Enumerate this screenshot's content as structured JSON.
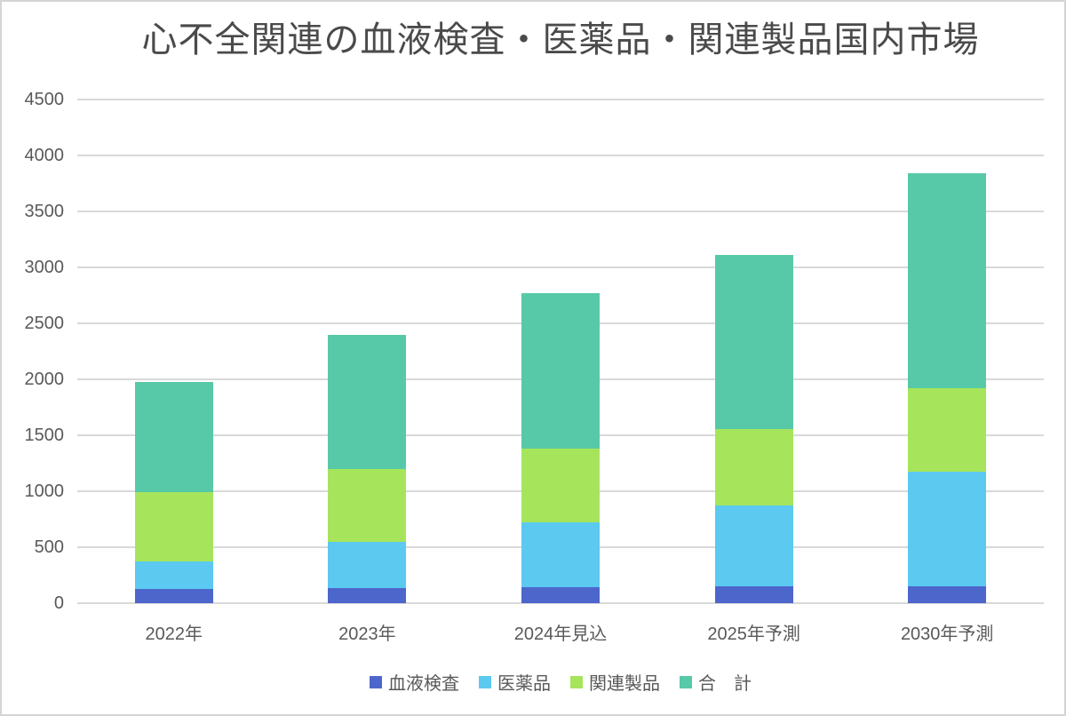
{
  "frame": {
    "background": "#ffffff",
    "border_color": "#d5d5d5",
    "gridline_color": "#d9d9d9",
    "axis_text_color": "#595959",
    "title_color": "#4a4a4a"
  },
  "chart_data": {
    "type": "bar",
    "stacked": true,
    "title": "心不全関連の血液検査・医薬品・関連製品国内市場",
    "categories": [
      "2022年",
      "2023年",
      "2024年見込",
      "2025年予測",
      "2030年予測"
    ],
    "series": [
      {
        "name": "血液検査",
        "color": "#4d66cb",
        "values": [
          130,
          135,
          140,
          150,
          155
        ]
      },
      {
        "name": "医薬品",
        "color": "#5bc9f0",
        "values": [
          240,
          410,
          580,
          720,
          1020
        ]
      },
      {
        "name": "関連製品",
        "color": "#a6e55b",
        "values": [
          620,
          655,
          665,
          685,
          745
        ]
      },
      {
        "name": "合　計",
        "color": "#57c9a8",
        "values": [
          990,
          1200,
          1385,
          1555,
          1920
        ]
      }
    ],
    "stack_totals": [
      1980,
      2400,
      2770,
      3110,
      3840
    ],
    "xlabel": "",
    "ylabel": "",
    "ylim": [
      0,
      4500
    ],
    "ytick_step": 500,
    "yticks": [
      0,
      500,
      1000,
      1500,
      2000,
      2500,
      3000,
      3500,
      4000,
      4500
    ],
    "grid": true,
    "legend_position": "bottom"
  }
}
